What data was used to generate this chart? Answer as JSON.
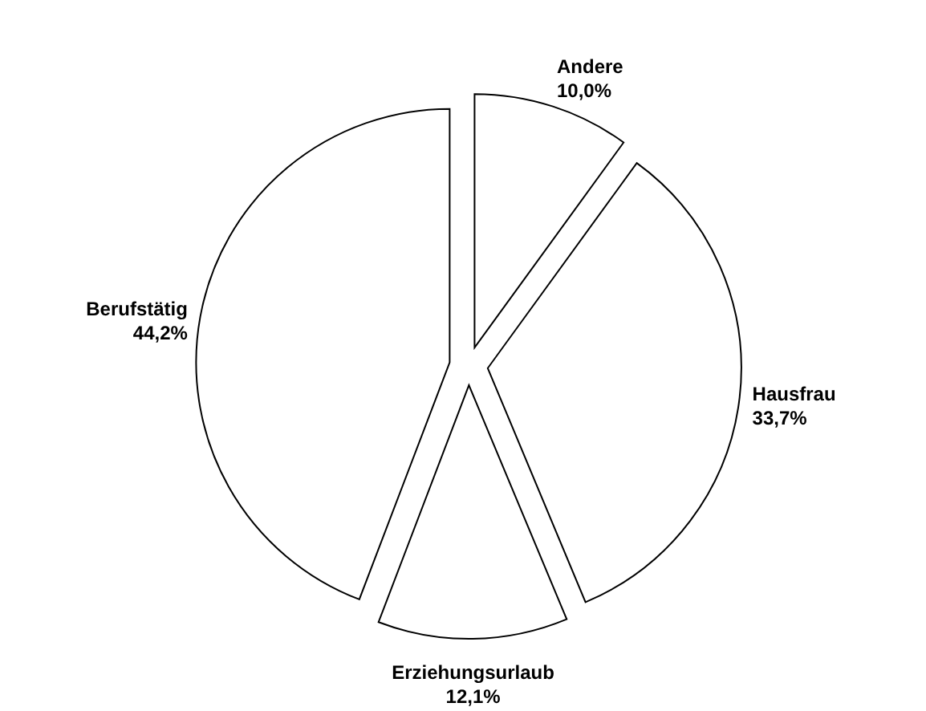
{
  "chart_data": {
    "type": "pie",
    "categories": [
      "Andere",
      "Hausfrau",
      "Erziehungsurlaub",
      "Berufstätig"
    ],
    "values": [
      10.0,
      33.7,
      12.1,
      44.2
    ],
    "value_labels": [
      "10,0%",
      "33,7%",
      "12,1%",
      "44,2%"
    ],
    "colors": [
      "#ffffff",
      "#ffffff",
      "#ffffff",
      "#ffffff"
    ]
  }
}
